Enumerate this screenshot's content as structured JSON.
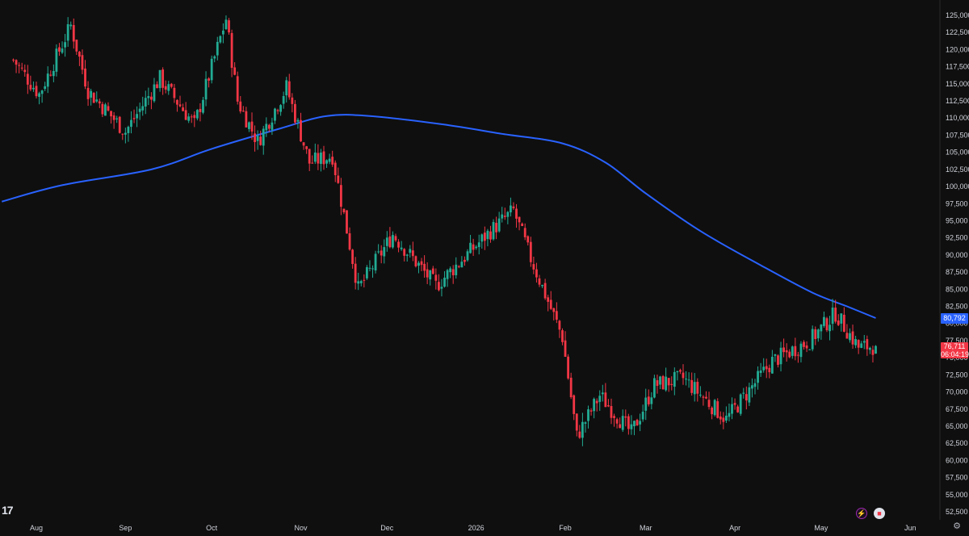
{
  "app": {
    "logo_text": "17",
    "ma_label": "80,792",
    "price_label": "76,711",
    "countdown": "06:04:19",
    "settings_icon": "gear-icon",
    "toolbar_icons": [
      "flash-icon",
      "flag-icon"
    ]
  },
  "colors": {
    "background": "#0f0f0f",
    "up": "#22ab94",
    "down": "#f23645",
    "ma": "#2962ff",
    "axis_text": "#d1d4dc"
  },
  "chart_data": {
    "type": "candlestick",
    "y_ticks": [
      "125,000",
      "122,500",
      "120,000",
      "117,500",
      "115,000",
      "112,500",
      "110,000",
      "107,500",
      "105,000",
      "102,500",
      "100,000",
      "97,500",
      "95,000",
      "92,500",
      "90,000",
      "87,500",
      "85,000",
      "82,500",
      "80,000",
      "77,500",
      "75,000",
      "72,500",
      "70,000",
      "67,500",
      "65,000",
      "62,500",
      "60,000",
      "57,500",
      "55,000",
      "52,500"
    ],
    "x_ticks": [
      "Aug",
      "Sep",
      "Oct",
      "Nov",
      "Dec",
      "2026",
      "Feb",
      "Mar",
      "Apr",
      "May",
      "Jun"
    ],
    "ylim": [
      51500,
      127000
    ],
    "grid": false,
    "close_anchors": [
      {
        "date": "2025-07-24",
        "close": 118500
      },
      {
        "date": "2025-08-02",
        "close": 113500
      },
      {
        "date": "2025-08-13",
        "close": 123500
      },
      {
        "date": "2025-08-19",
        "close": 114000
      },
      {
        "date": "2025-09-01",
        "close": 108000
      },
      {
        "date": "2025-09-13",
        "close": 115800
      },
      {
        "date": "2025-09-25",
        "close": 109000
      },
      {
        "date": "2025-10-06",
        "close": 124500
      },
      {
        "date": "2025-10-10",
        "close": 112500
      },
      {
        "date": "2025-10-17",
        "close": 106500
      },
      {
        "date": "2025-10-27",
        "close": 114500
      },
      {
        "date": "2025-11-04",
        "close": 103500
      },
      {
        "date": "2025-11-12",
        "close": 104500
      },
      {
        "date": "2025-11-21",
        "close": 85000
      },
      {
        "date": "2025-12-03",
        "close": 93000
      },
      {
        "date": "2025-12-18",
        "close": 85500
      },
      {
        "date": "2026-01-06",
        "close": 93500
      },
      {
        "date": "2026-01-14",
        "close": 96500
      },
      {
        "date": "2026-01-20",
        "close": 89500
      },
      {
        "date": "2026-01-31",
        "close": 78000
      },
      {
        "date": "2026-02-05",
        "close": 63500
      },
      {
        "date": "2026-02-13",
        "close": 69500
      },
      {
        "date": "2026-02-24",
        "close": 64000
      },
      {
        "date": "2026-03-04",
        "close": 71000
      },
      {
        "date": "2026-03-14",
        "close": 72000
      },
      {
        "date": "2026-03-29",
        "close": 66000
      },
      {
        "date": "2026-04-14",
        "close": 74500
      },
      {
        "date": "2026-04-27",
        "close": 77500
      },
      {
        "date": "2026-05-06",
        "close": 81500
      },
      {
        "date": "2026-05-14",
        "close": 76500
      },
      {
        "date": "2026-05-20",
        "close": 76711
      }
    ],
    "ma_line": [
      {
        "date": "2025-07-20",
        "value": 97800
      },
      {
        "date": "2025-08-10",
        "value": 100200
      },
      {
        "date": "2025-09-10",
        "value": 102500
      },
      {
        "date": "2025-10-01",
        "value": 105500
      },
      {
        "date": "2025-10-25",
        "value": 108500
      },
      {
        "date": "2025-11-10",
        "value": 110300
      },
      {
        "date": "2025-11-25",
        "value": 110300
      },
      {
        "date": "2025-12-20",
        "value": 109100
      },
      {
        "date": "2026-01-10",
        "value": 107700
      },
      {
        "date": "2026-01-31",
        "value": 106300
      },
      {
        "date": "2026-02-15",
        "value": 103500
      },
      {
        "date": "2026-03-01",
        "value": 99000
      },
      {
        "date": "2026-03-20",
        "value": 93500
      },
      {
        "date": "2026-04-10",
        "value": 88500
      },
      {
        "date": "2026-04-28",
        "value": 84500
      },
      {
        "date": "2026-05-10",
        "value": 82500
      },
      {
        "date": "2026-05-20",
        "value": 80792
      }
    ],
    "last_price": 76711,
    "ma_last": 80792
  }
}
